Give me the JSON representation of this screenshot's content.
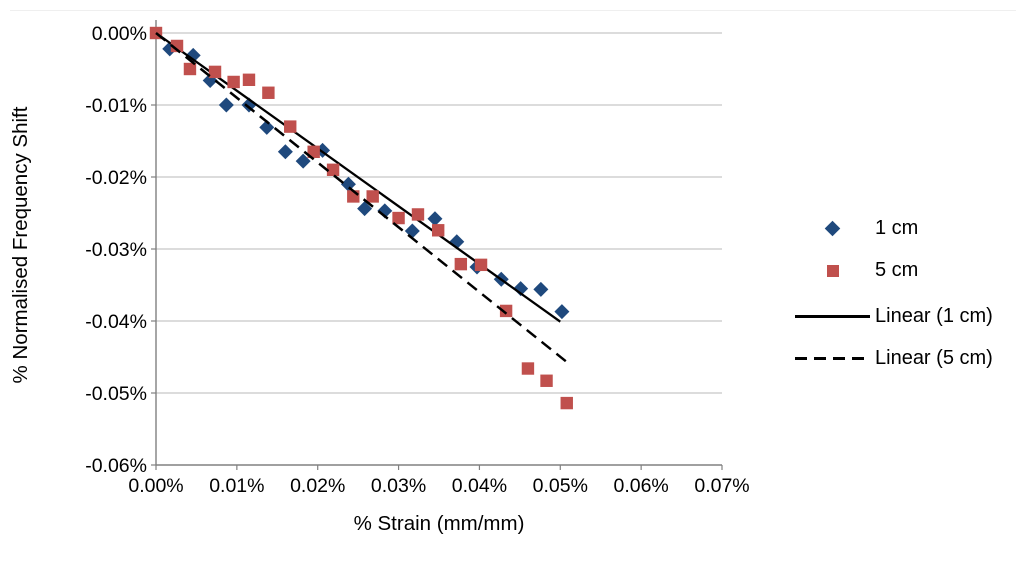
{
  "figure": {
    "background": "#FFFFFF",
    "top_border_color": "#EFEFEF"
  },
  "chart_data": {
    "type": "scatter",
    "title": "",
    "xlabel": "% Strain (mm/mm)",
    "ylabel": "% Normalised Frequency Shift",
    "value_unit": "percent",
    "xlim": [
      0,
      0.07
    ],
    "ylim": [
      -0.06,
      0
    ],
    "grid": "horizontal",
    "x_ticks": [
      0,
      0.01,
      0.02,
      0.03,
      0.04,
      0.05,
      0.06,
      0.07
    ],
    "x_tick_labels": [
      "0.00%",
      "0.01%",
      "0.02%",
      "0.03%",
      "0.04%",
      "0.05%",
      "0.06%",
      "0.07%"
    ],
    "y_ticks": [
      0,
      -0.01,
      -0.02,
      -0.03,
      -0.04,
      -0.05,
      -0.06
    ],
    "y_tick_labels": [
      "0.00%",
      "-0.01%",
      "-0.02%",
      "-0.03%",
      "-0.04%",
      "-0.05%",
      "-0.06%"
    ],
    "colors": {
      "series_1cm": "#1F497D",
      "series_5cm": "#C0504D",
      "trendline": "#000000",
      "grid": "#C6C6C6",
      "axis": "#808080",
      "text": "#000000"
    },
    "series": [
      {
        "name": "1 cm",
        "marker": "diamond",
        "color": "#1F497D",
        "points": [
          [
            0.0017,
            -0.0022
          ],
          [
            0.0046,
            -0.0031
          ],
          [
            0.0067,
            -0.0066
          ],
          [
            0.0087,
            -0.01
          ],
          [
            0.0115,
            -0.01
          ],
          [
            0.0137,
            -0.0131
          ],
          [
            0.016,
            -0.0165
          ],
          [
            0.0182,
            -0.0178
          ],
          [
            0.0206,
            -0.0163
          ],
          [
            0.0238,
            -0.021
          ],
          [
            0.0258,
            -0.0244
          ],
          [
            0.0283,
            -0.0247
          ],
          [
            0.0317,
            -0.0275
          ],
          [
            0.0345,
            -0.0258
          ],
          [
            0.0372,
            -0.029
          ],
          [
            0.0397,
            -0.0325
          ],
          [
            0.0427,
            -0.0342
          ],
          [
            0.0451,
            -0.0355
          ],
          [
            0.0476,
            -0.0356
          ],
          [
            0.0502,
            -0.0387
          ]
        ]
      },
      {
        "name": "5 cm",
        "marker": "square",
        "color": "#C0504D",
        "points": [
          [
            0.0,
            0.0
          ],
          [
            0.0026,
            -0.0018
          ],
          [
            0.0042,
            -0.005
          ],
          [
            0.0073,
            -0.0054
          ],
          [
            0.0096,
            -0.0068
          ],
          [
            0.0115,
            -0.0065
          ],
          [
            0.0139,
            -0.0083
          ],
          [
            0.0166,
            -0.013
          ],
          [
            0.0195,
            -0.0165
          ],
          [
            0.0219,
            -0.019
          ],
          [
            0.0244,
            -0.0227
          ],
          [
            0.0268,
            -0.0227
          ],
          [
            0.03,
            -0.0257
          ],
          [
            0.0324,
            -0.0252
          ],
          [
            0.0349,
            -0.0274
          ],
          [
            0.0377,
            -0.0321
          ],
          [
            0.0402,
            -0.0322
          ],
          [
            0.0433,
            -0.0386
          ],
          [
            0.046,
            -0.0466
          ],
          [
            0.0483,
            -0.0483
          ],
          [
            0.0508,
            -0.0514
          ]
        ]
      }
    ],
    "trendlines": [
      {
        "name": "Linear (1 cm)",
        "style": "solid",
        "color": "#000000",
        "from": [
          0,
          0
        ],
        "to": [
          0.05,
          -0.0401
        ]
      },
      {
        "name": "Linear (5 cm)",
        "style": "dashed",
        "color": "#000000",
        "from": [
          0,
          0
        ],
        "to": [
          0.0507,
          -0.0456
        ]
      }
    ],
    "legend": {
      "position": "right",
      "items": [
        {
          "label": "1 cm",
          "marker": "diamond",
          "color": "#1F497D"
        },
        {
          "label": "5 cm",
          "marker": "square",
          "color": "#C0504D"
        },
        {
          "label": "Linear (1 cm)",
          "marker": "solid-line",
          "color": "#000000"
        },
        {
          "label": "Linear (5 cm)",
          "marker": "dashed-line",
          "color": "#000000"
        }
      ]
    }
  }
}
